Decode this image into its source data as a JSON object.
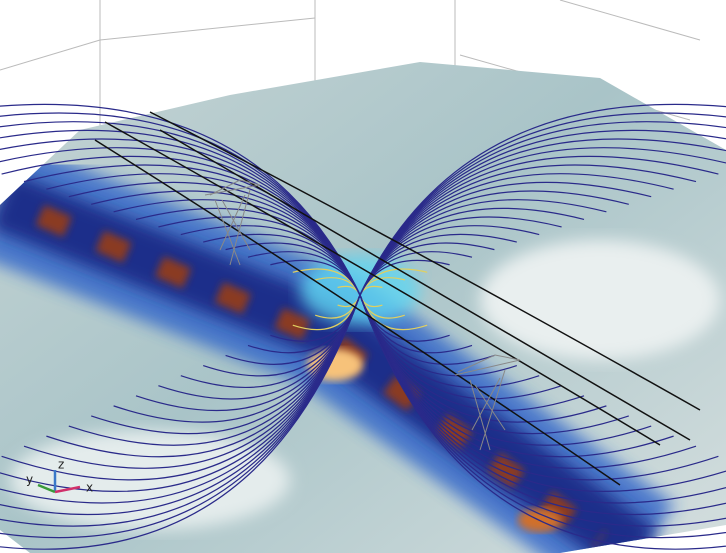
{
  "axis_triad": {
    "x": "x",
    "y": "y",
    "z": "z"
  }
}
